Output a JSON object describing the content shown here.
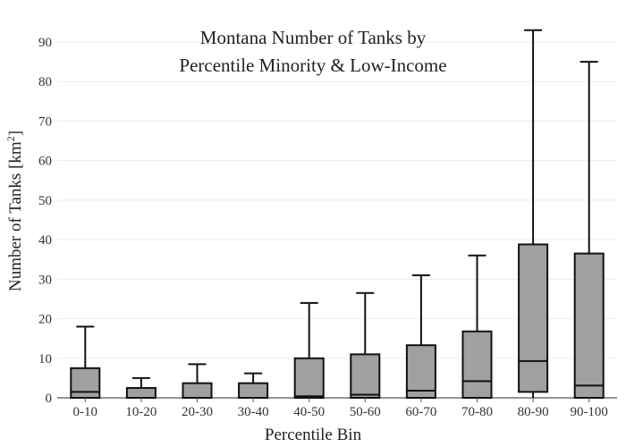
{
  "chart_data": {
    "type": "box",
    "title_line1": "Montana Number of Tanks by",
    "title_line2": "Percentile Minority & Low-Income",
    "xlabel": "Percentile Bin",
    "ylabel_main": "Number of Tanks  [km",
    "ylabel_sup": "2",
    "ylabel_end": "]",
    "ylim": [
      0,
      95
    ],
    "yticks": [
      0,
      10,
      20,
      30,
      40,
      50,
      60,
      70,
      80,
      90
    ],
    "grid": true,
    "box_color": "#a0a0a0",
    "categories": [
      "0-10",
      "10-20",
      "20-30",
      "30-40",
      "40-50",
      "50-60",
      "60-70",
      "70-80",
      "80-90",
      "90-100"
    ],
    "boxes": [
      {
        "min": 0,
        "q1": 0,
        "median": 1.5,
        "q3": 7.5,
        "max": 18
      },
      {
        "min": 0,
        "q1": 0,
        "median": 0,
        "q3": 2.5,
        "max": 5
      },
      {
        "min": 0,
        "q1": 0,
        "median": 0,
        "q3": 3.7,
        "max": 8.5
      },
      {
        "min": 0,
        "q1": 0,
        "median": 0,
        "q3": 3.7,
        "max": 6.2
      },
      {
        "min": 0,
        "q1": 0,
        "median": 0.4,
        "q3": 10,
        "max": 24
      },
      {
        "min": 0,
        "q1": 0,
        "median": 0.8,
        "q3": 11,
        "max": 26.5
      },
      {
        "min": 0,
        "q1": 0,
        "median": 1.8,
        "q3": 13.3,
        "max": 31
      },
      {
        "min": 0,
        "q1": 0,
        "median": 4.2,
        "q3": 16.8,
        "max": 36
      },
      {
        "min": 0,
        "q1": 1.5,
        "median": 9.3,
        "q3": 38.8,
        "max": 93
      },
      {
        "min": 0,
        "q1": 0,
        "median": 3.1,
        "q3": 36.5,
        "max": 85
      }
    ]
  }
}
